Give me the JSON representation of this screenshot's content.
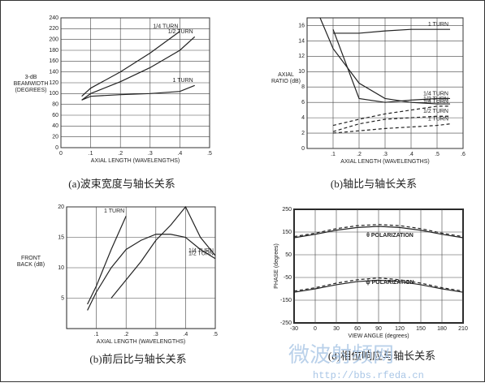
{
  "chart_data": [
    {
      "type": "line",
      "caption": "(a)波束宽度与轴长关系",
      "xlabel": "AXIAL LENGTH (WAVELENGTHS)",
      "ylabel": [
        "3-dB",
        "BEAMWIDTH",
        "(DEGREES)"
      ],
      "x": [
        0.07,
        0.1,
        0.2,
        0.3,
        0.4,
        0.45
      ],
      "series": [
        {
          "name": "1/4 TURN",
          "color": "#222",
          "values": [
            95,
            110,
            140,
            175,
            215,
            null
          ]
        },
        {
          "name": "1/2 TURN",
          "color": "#222",
          "values": [
            88,
            100,
            122,
            148,
            180,
            205
          ]
        },
        {
          "name": "1 TURN",
          "color": "#222",
          "values": [
            88,
            95,
            98,
            100,
            104,
            115
          ]
        }
      ],
      "xlim": [
        0,
        0.5
      ],
      "xticks": [
        0,
        {
          "value": 0.1,
          "label": ".1"
        },
        {
          "value": 0.2,
          "label": ".2"
        },
        {
          "value": 0.3,
          "label": ".3"
        },
        {
          "value": 0.4,
          "label": ".4"
        },
        {
          "value": 0.5,
          "label": ".5"
        }
      ],
      "ylim": [
        0,
        240
      ],
      "yticks": [
        0,
        20,
        40,
        60,
        80,
        100,
        120,
        140,
        160,
        180,
        200,
        220,
        240
      ],
      "grid": true
    },
    {
      "type": "line",
      "caption": "(b)轴比与轴长关系",
      "xlabel": "AXIAL LENGTH (WAVELENGTHS)",
      "ylabel": [
        "AXIAL",
        "RATIO (dB)"
      ],
      "x": [
        0.05,
        0.1,
        0.2,
        0.3,
        0.4,
        0.5,
        0.55
      ],
      "series": [
        {
          "name": "1/2 TURN",
          "color": "#222",
          "values": [
            17,
            13,
            8.5,
            6.5,
            6,
            5.8,
            5.8
          ]
        },
        {
          "name": "1/4 TURN",
          "color": "#222",
          "values": [
            null,
            15.5,
            6.5,
            6,
            6.3,
            6.5,
            6.5
          ]
        },
        {
          "name": "1 TURN",
          "color": "#222",
          "values": [
            null,
            15,
            15,
            15.3,
            15.5,
            15.5,
            15.5
          ]
        },
        {
          "name": "1/4 TURN",
          "color": "#222",
          "dash": true,
          "values": [
            null,
            3,
            3.8,
            4.5,
            5,
            5.5,
            5.5
          ]
        },
        {
          "name": "1/2 TURN",
          "color": "#222",
          "dash": true,
          "values": [
            null,
            2.2,
            3.2,
            3.8,
            4,
            4.2,
            4.2
          ]
        },
        {
          "name": "1 TURN",
          "color": "#222",
          "dash": true,
          "values": [
            null,
            2,
            2.3,
            2.6,
            2.8,
            3,
            3.2
          ]
        }
      ],
      "xlim": [
        0,
        0.6
      ],
      "xticks": [
        {
          "value": 0.1,
          "label": ".1"
        },
        {
          "value": 0.2,
          "label": ".2"
        },
        {
          "value": 0.3,
          "label": ".3"
        },
        {
          "value": 0.4,
          "label": ".4"
        },
        {
          "value": 0.5,
          "label": ".5"
        },
        {
          "value": 0.6,
          "label": ".6"
        }
      ],
      "ylim": [
        0,
        17
      ],
      "yticks": [
        0,
        2,
        4,
        6,
        8,
        10,
        12,
        14,
        16
      ],
      "grid": true
    },
    {
      "type": "line",
      "caption": "(b)前后比与轴长关系",
      "xlabel": "AXIAL LENGTH (WAVELENGTHS)",
      "ylabel": [
        "FRONT",
        "BACK (dB)"
      ],
      "x": [
        0.07,
        0.1,
        0.15,
        0.2,
        0.25,
        0.3,
        0.35,
        0.4,
        0.45,
        0.5
      ],
      "series": [
        {
          "name": "1 TURN",
          "color": "#222",
          "values": [
            4,
            7,
            13,
            18.5,
            null,
            null,
            null,
            null,
            null,
            null
          ]
        },
        {
          "name": "1/2 TURN",
          "color": "#222",
          "values": [
            3,
            6,
            10,
            13,
            14.5,
            15.5,
            15.5,
            15,
            13,
            11.5
          ]
        },
        {
          "name": "1/4 TURN",
          "color": "#222",
          "values": [
            null,
            null,
            5,
            8,
            11,
            14.5,
            17,
            20,
            15,
            12
          ]
        }
      ],
      "xlim": [
        0,
        0.5
      ],
      "xticks": [
        {
          "value": 0.1,
          "label": ".1"
        },
        {
          "value": 0.2,
          "label": ".2"
        },
        {
          "value": 0.3,
          "label": ".3"
        },
        {
          "value": 0.4,
          "label": ".4"
        },
        {
          "value": 0.5,
          "label": ".5"
        }
      ],
      "ylim": [
        0,
        20
      ],
      "yticks": [
        5,
        10,
        15,
        20
      ],
      "grid": true
    },
    {
      "type": "line",
      "caption": "(d)相位响应与轴长关系",
      "xlabel": "VIEW ANGLE (degrees)",
      "ylabel": [
        "PHASE (degrees)"
      ],
      "annotations": [
        "θ POLARIZATION",
        "ϕ POLARIZATION"
      ],
      "x": [
        -30,
        0,
        30,
        60,
        90,
        120,
        150,
        180,
        210
      ],
      "series": [
        {
          "color": "#222",
          "values": [
            125,
            140,
            158,
            170,
            175,
            170,
            158,
            140,
            125
          ]
        },
        {
          "color": "#222",
          "dash": true,
          "values": [
            130,
            145,
            165,
            178,
            183,
            178,
            165,
            145,
            130
          ]
        },
        {
          "color": "#222",
          "values": [
            -115,
            -100,
            -82,
            -68,
            -62,
            -68,
            -82,
            -100,
            -115
          ]
        },
        {
          "color": "#222",
          "dash": true,
          "values": [
            -110,
            -95,
            -75,
            -60,
            -52,
            -60,
            -75,
            -95,
            -110
          ]
        }
      ],
      "xlim": [
        -30,
        210
      ],
      "xticks": [
        -30,
        0,
        30,
        60,
        90,
        120,
        150,
        180,
        210
      ],
      "ylim": [
        -250,
        250
      ],
      "yticks": [
        -250,
        -150,
        -50,
        50,
        150,
        250
      ],
      "grid": true
    }
  ],
  "watermark": {
    "text": "微波射频网",
    "url": "http://bbs.rfeda.cn"
  }
}
